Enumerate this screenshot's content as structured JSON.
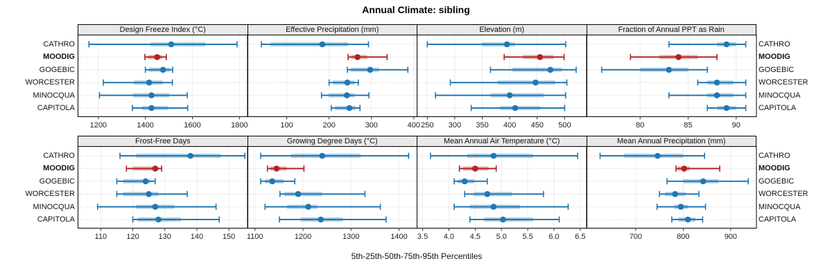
{
  "title": "Annual Climate: sibling",
  "caption": "5th-25th-50th-75th-95th Percentiles",
  "percentile_levels": [
    5,
    25,
    50,
    75,
    95
  ],
  "colors": {
    "series_blue": "#1f77b4",
    "series_blue_band": "#aecde5",
    "series_red": "#b22222",
    "series_red_band": "#e4b3ae",
    "header_bg": "#e9e9e9",
    "panel_border": "#000000",
    "gridline": "#c9c9c9",
    "tick_text": "#222222",
    "label_text": "#111111"
  },
  "sites": [
    {
      "label": "CATHRO",
      "emphasis": false
    },
    {
      "label": "MOODIG",
      "emphasis": true
    },
    {
      "label": "GOGEBIC",
      "emphasis": false
    },
    {
      "label": "WORCESTER",
      "emphasis": false
    },
    {
      "label": "MINOCQUA",
      "emphasis": false
    },
    {
      "label": "CAPITOLA",
      "emphasis": false
    }
  ],
  "chart_data": [
    {
      "type": "dotplot",
      "title": "Design Freeze Index (°C)",
      "xlim": [
        1115,
        1830
      ],
      "ticks": [
        1200,
        1400,
        1600,
        1800
      ],
      "tick_labels": [
        "1200",
        "1400",
        "1600",
        "1800"
      ],
      "grid": true,
      "series": [
        {
          "name": "CATHRO",
          "values": [
            1160,
            1422,
            1510,
            1655,
            1790
          ]
        },
        {
          "name": "MOODIG",
          "values": [
            1398,
            1411,
            1450,
            1471,
            1489
          ]
        },
        {
          "name": "GOGEBIC",
          "values": [
            1400,
            1416,
            1475,
            1505,
            1516
          ]
        },
        {
          "name": "WORCESTER",
          "values": [
            1221,
            1351,
            1416,
            1473,
            1515
          ]
        },
        {
          "name": "MINOCQUA",
          "values": [
            1205,
            1347,
            1426,
            1502,
            1578
          ]
        },
        {
          "name": "CAPITOLA",
          "values": [
            1345,
            1386,
            1426,
            1497,
            1580
          ]
        }
      ]
    },
    {
      "type": "dotplot",
      "title": "Effective Precipitation (mm)",
      "xlim": [
        9,
        406
      ],
      "ticks": [
        100,
        200,
        300,
        400
      ],
      "tick_labels": [
        "100",
        "200",
        "300",
        "400"
      ],
      "grid": true,
      "series": [
        {
          "name": "CATHRO",
          "values": [
            40,
            62,
            184,
            245,
            293
          ]
        },
        {
          "name": "MOODIG",
          "values": [
            245,
            252,
            267,
            290,
            337
          ]
        },
        {
          "name": "GOGEBIC",
          "values": [
            243,
            251,
            297,
            318,
            386
          ]
        },
        {
          "name": "WORCESTER",
          "values": [
            200,
            209,
            243,
            260,
            269
          ]
        },
        {
          "name": "MINOCQUA",
          "values": [
            182,
            199,
            242,
            260,
            294
          ]
        },
        {
          "name": "CAPITOLA",
          "values": [
            205,
            214,
            248,
            263,
            273
          ]
        }
      ]
    },
    {
      "type": "dotplot",
      "title": "Elevation (m)",
      "xlim": [
        232,
        538
      ],
      "ticks": [
        250,
        300,
        350,
        400,
        450,
        500
      ],
      "tick_labels": [
        "250",
        "300",
        "350",
        "400",
        "450",
        "500"
      ],
      "grid": true,
      "series": [
        {
          "name": "CATHRO",
          "values": [
            250,
            349,
            395,
            410,
            502
          ]
        },
        {
          "name": "MOODIG",
          "values": [
            390,
            424,
            455,
            480,
            499
          ]
        },
        {
          "name": "GOGEBIC",
          "values": [
            365,
            405,
            474,
            495,
            521
          ]
        },
        {
          "name": "WORCESTER",
          "values": [
            292,
            378,
            447,
            483,
            504
          ]
        },
        {
          "name": "MINOCQUA",
          "values": [
            265,
            365,
            400,
            462,
            502
          ]
        },
        {
          "name": "CAPITOLA",
          "values": [
            330,
            382,
            410,
            456,
            500
          ]
        }
      ]
    },
    {
      "type": "dotplot",
      "title": "Fraction of Annual PPT as Rain",
      "xlim": [
        74.5,
        92
      ],
      "ticks": [
        80,
        85,
        90
      ],
      "tick_labels": [
        "80",
        "85",
        "90"
      ],
      "grid": true,
      "series": [
        {
          "name": "CATHRO",
          "values": [
            83,
            88,
            89,
            90,
            91
          ]
        },
        {
          "name": "MOODIG",
          "values": [
            79,
            82,
            84,
            86,
            88
          ]
        },
        {
          "name": "GOGEBIC",
          "values": [
            76,
            80,
            83,
            85,
            87
          ]
        },
        {
          "name": "WORCESTER",
          "values": [
            86,
            87,
            88,
            89.7,
            91
          ]
        },
        {
          "name": "MINOCQUA",
          "values": [
            83,
            87,
            88,
            89.7,
            91
          ]
        },
        {
          "name": "CAPITOLA",
          "values": [
            87,
            88,
            89,
            90,
            91
          ]
        }
      ]
    },
    {
      "type": "dotplot",
      "title": "Frost-Free Days",
      "xlim": [
        103,
        155.5
      ],
      "ticks": [
        110,
        120,
        130,
        140,
        150
      ],
      "tick_labels": [
        "110",
        "120",
        "130",
        "140",
        "150"
      ],
      "grid": true,
      "series": [
        {
          "name": "CATHRO",
          "values": [
            116,
            121,
            138,
            147.5,
            155
          ]
        },
        {
          "name": "MOODIG",
          "values": [
            118,
            120,
            127,
            128,
            129
          ]
        },
        {
          "name": "GOGEBIC",
          "values": [
            115,
            117,
            124,
            125.5,
            127
          ]
        },
        {
          "name": "WORCESTER",
          "values": [
            115,
            117,
            125,
            128,
            137
          ]
        },
        {
          "name": "MINOCQUA",
          "values": [
            109,
            121,
            127,
            133,
            146
          ]
        },
        {
          "name": "CAPITOLA",
          "values": [
            120,
            121.5,
            128,
            135,
            147
          ]
        }
      ]
    },
    {
      "type": "dotplot",
      "title": "Growing Degree Days (°C)",
      "xlim": [
        1086,
        1436
      ],
      "ticks": [
        1100,
        1200,
        1300,
        1400
      ],
      "tick_labels": [
        "1100",
        "1200",
        "1300",
        "1400"
      ],
      "grid": true,
      "series": [
        {
          "name": "CATHRO",
          "values": [
            1112,
            1175,
            1240,
            1320,
            1420
          ]
        },
        {
          "name": "MOODIG",
          "values": [
            1126,
            1132,
            1145,
            1166,
            1202
          ]
        },
        {
          "name": "GOGEBIC",
          "values": [
            1112,
            1121,
            1136,
            1160,
            1183
          ]
        },
        {
          "name": "WORCESTER",
          "values": [
            1152,
            1161,
            1190,
            1240,
            1329
          ]
        },
        {
          "name": "MINOCQUA",
          "values": [
            1121,
            1167,
            1211,
            1230,
            1361
          ]
        },
        {
          "name": "CAPITOLA",
          "values": [
            1151,
            1195,
            1237,
            1283,
            1373
          ]
        }
      ]
    },
    {
      "type": "dotplot",
      "title": "Mean Annual Air Temperature (°C)",
      "xlim": [
        3.4,
        6.6
      ],
      "ticks": [
        3.5,
        4.0,
        4.5,
        5.0,
        5.5,
        6.0,
        6.5
      ],
      "tick_labels": [
        "3.5",
        "4.0",
        "4.5",
        "5.0",
        "5.5",
        "6.0",
        "6.5"
      ],
      "grid": true,
      "series": [
        {
          "name": "CATHRO",
          "values": [
            3.65,
            4.35,
            4.85,
            5.6,
            6.45
          ]
        },
        {
          "name": "MOODIG",
          "values": [
            4.2,
            4.27,
            4.5,
            4.75,
            4.9
          ]
        },
        {
          "name": "GOGEBIC",
          "values": [
            4.1,
            4.17,
            4.3,
            4.48,
            4.73
          ]
        },
        {
          "name": "WORCESTER",
          "values": [
            4.3,
            4.47,
            4.73,
            5.2,
            5.8
          ]
        },
        {
          "name": "MINOCQUA",
          "values": [
            4.1,
            4.4,
            4.85,
            5.35,
            6.27
          ]
        },
        {
          "name": "CAPITOLA",
          "values": [
            4.4,
            4.67,
            5.03,
            5.6,
            6.1
          ]
        }
      ]
    },
    {
      "type": "dotplot",
      "title": "Mean Annual Precipitation (mm)",
      "xlim": [
        598,
        952
      ],
      "ticks": [
        700,
        800,
        900
      ],
      "tick_labels": [
        "700",
        "800",
        "900"
      ],
      "grid": true,
      "series": [
        {
          "name": "CATHRO",
          "values": [
            625,
            675,
            746,
            800,
            845
          ]
        },
        {
          "name": "MOODIG",
          "values": [
            785,
            788,
            802,
            814,
            877
          ]
        },
        {
          "name": "GOGEBIC",
          "values": [
            766,
            800,
            842,
            874,
            937
          ]
        },
        {
          "name": "WORCESTER",
          "values": [
            750,
            762,
            783,
            805,
            833
          ]
        },
        {
          "name": "MINOCQUA",
          "values": [
            745,
            781,
            795,
            810,
            847
          ]
        },
        {
          "name": "CAPITOLA",
          "values": [
            776,
            790,
            810,
            826,
            841
          ]
        }
      ]
    }
  ]
}
